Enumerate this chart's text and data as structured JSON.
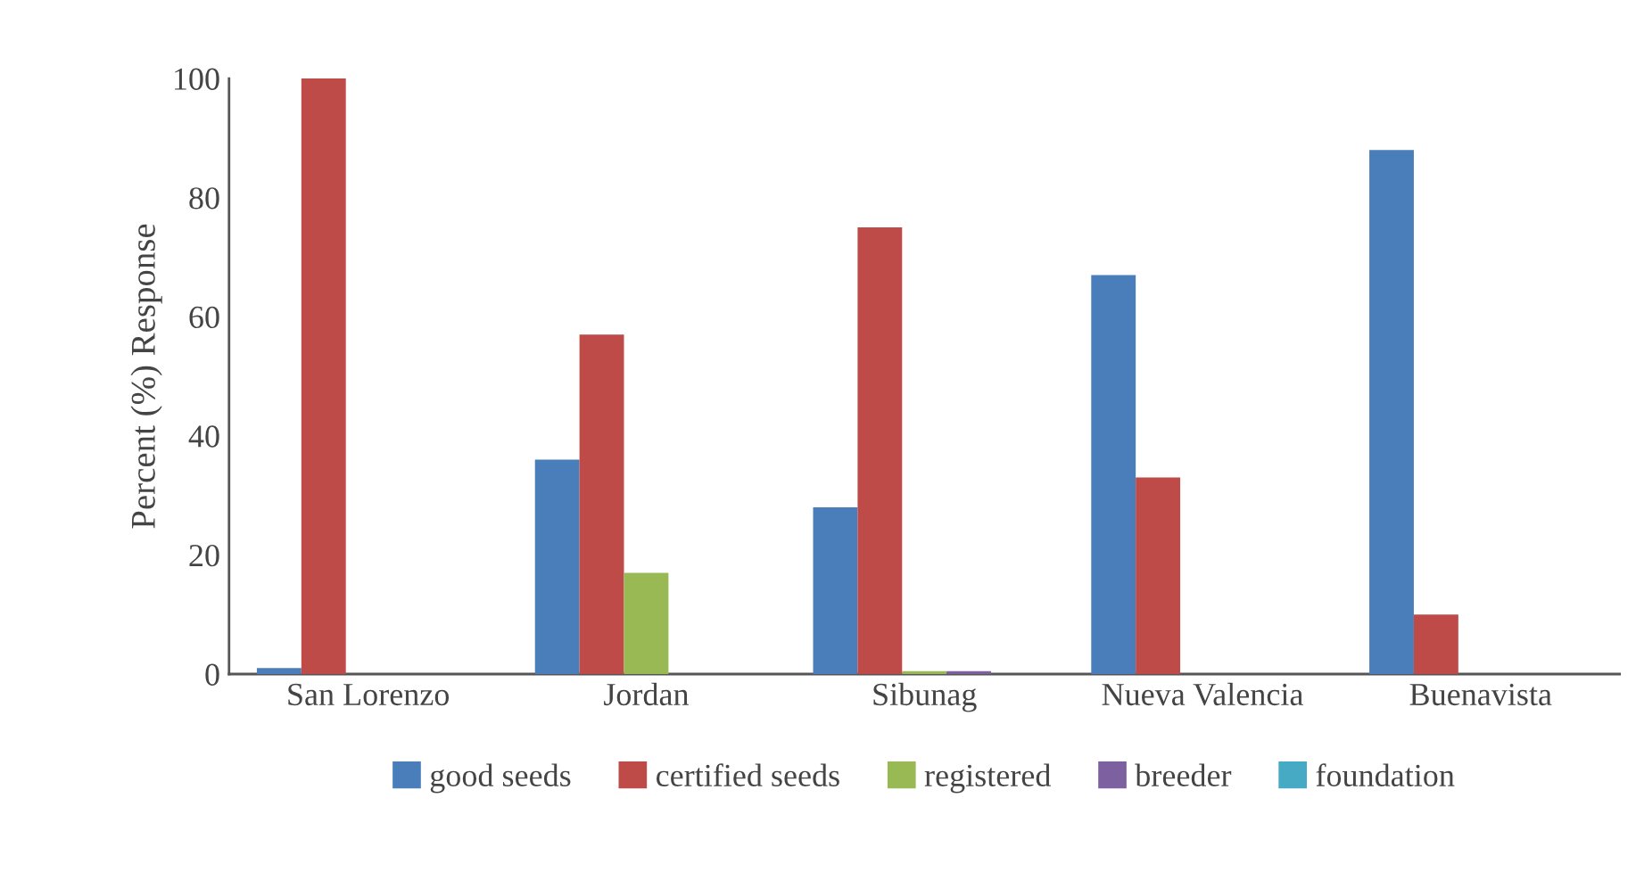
{
  "chart_data": {
    "type": "bar",
    "ylabel": "Percent (%) Response",
    "categories": [
      "San Lorenzo",
      "Jordan",
      "Sibunag",
      "Nueva Valencia",
      "Buenavista"
    ],
    "series": [
      {
        "name": "good seeds",
        "color": "#4a7ebb",
        "values": [
          1,
          36,
          28,
          67,
          88
        ]
      },
      {
        "name": "certified seeds",
        "color": "#be4b48",
        "values": [
          100,
          57,
          75,
          33,
          10
        ]
      },
      {
        "name": "registered",
        "color": "#98b954",
        "values": [
          0,
          17,
          0.5,
          0,
          0
        ]
      },
      {
        "name": "breeder",
        "color": "#7d60a0",
        "values": [
          0,
          0,
          0.5,
          0,
          0
        ]
      },
      {
        "name": "foundation",
        "color": "#46aac5",
        "values": [
          0,
          0,
          0,
          0,
          0
        ]
      }
    ],
    "ylim": [
      0,
      100
    ],
    "yticks": [
      0,
      20,
      40,
      60,
      80,
      100
    ],
    "grid": false,
    "legend": "bottom"
  }
}
